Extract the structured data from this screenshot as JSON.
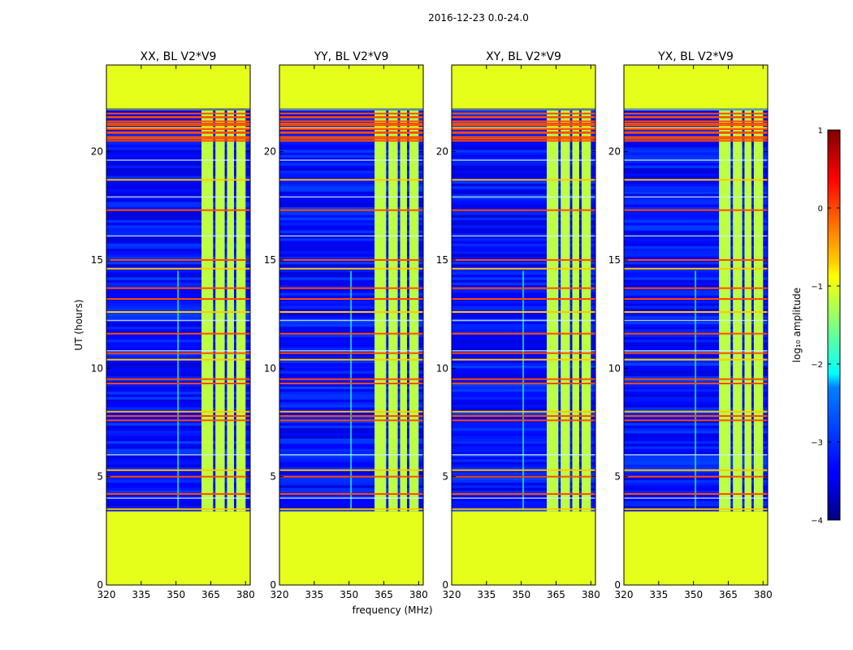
{
  "chart_data": {
    "type": "heatmap",
    "suptitle": "2016-12-23 0.0-24.0",
    "xlabel": "frequency (MHz)",
    "ylabel": "UT (hours)",
    "xlim": [
      320,
      382
    ],
    "ylim": [
      0,
      24
    ],
    "xticks": [
      320,
      335,
      350,
      365,
      380
    ],
    "yticks": [
      0,
      5,
      10,
      15,
      20
    ],
    "panels": [
      {
        "title": "XX, BL V2*V9"
      },
      {
        "title": "YY, BL V2*V9"
      },
      {
        "title": "XY, BL V2*V9"
      },
      {
        "title": "YX, BL V2*V9"
      }
    ],
    "data_span_ut": [
      3.4,
      21.9
    ],
    "fill_value_log10": -1.0,
    "rfi_band_mhz": [
      361,
      378
    ],
    "rfi_sub_bands_mhz": [
      [
        361,
        366
      ],
      [
        367,
        371
      ],
      [
        372,
        375
      ],
      [
        376,
        380
      ]
    ],
    "background_log10": -3.3,
    "rfi_band_log10": -1.2,
    "flagged_rows_ut": [
      3.5,
      4.2,
      5.0,
      5.3,
      7.6,
      7.8,
      8.0,
      9.3,
      9.5,
      10.4,
      10.7,
      11.6,
      12.6,
      13.2,
      13.7,
      14.6,
      15.0,
      17.3,
      18.7,
      20.6,
      20.9,
      21.1,
      21.3,
      21.6
    ],
    "colorbar": {
      "label": "log₁₀ amplitude",
      "range": [
        -4,
        1
      ],
      "ticks": [
        "1",
        "0",
        "−1",
        "−2",
        "−3",
        "−4"
      ],
      "colormap": "jet"
    }
  }
}
